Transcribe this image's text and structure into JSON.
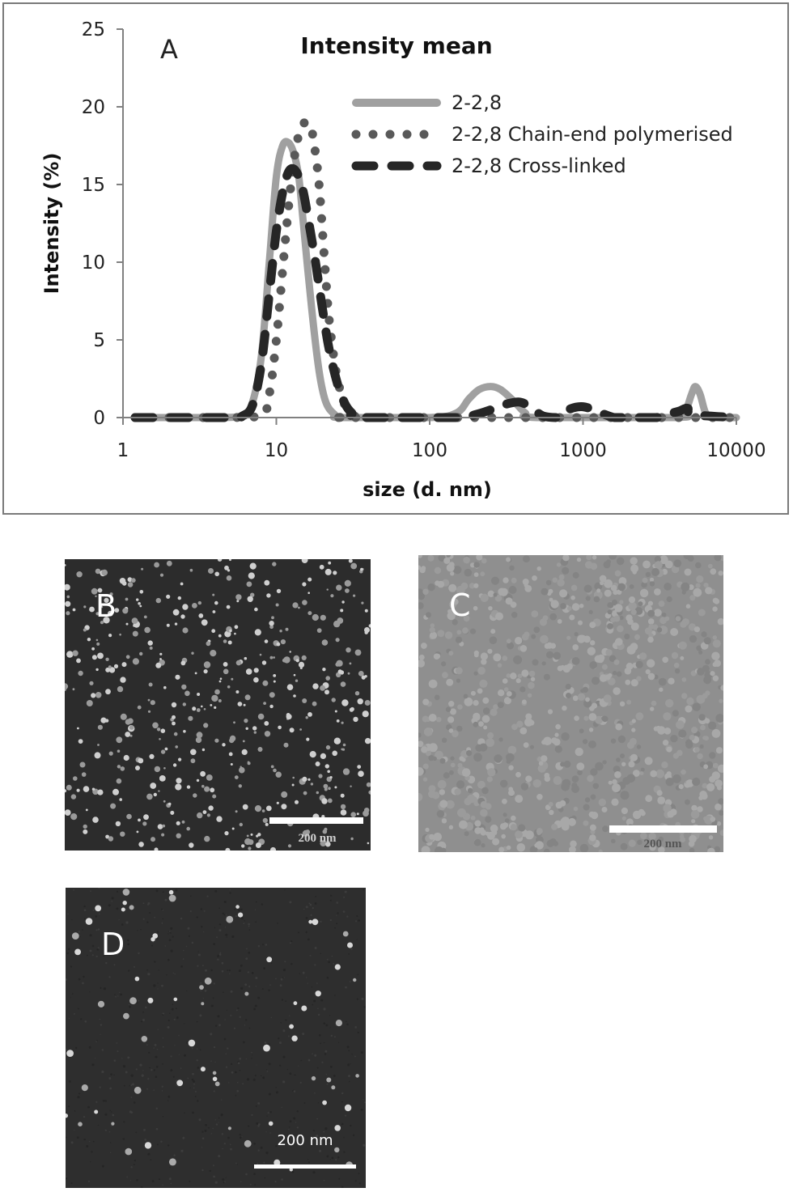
{
  "chart_data": {
    "type": "line",
    "panel_label": "A",
    "title": "Intensity mean",
    "xlabel": "size (d. nm)",
    "ylabel": "Intensity (%)",
    "x_scale": "log",
    "xlim": [
      1,
      10000
    ],
    "ylim": [
      0,
      25
    ],
    "x_ticks": [
      1,
      10,
      100,
      1000,
      10000
    ],
    "x_tick_labels": [
      "1",
      "10",
      "100",
      "1000",
      "10000"
    ],
    "y_ticks": [
      0,
      5,
      10,
      15,
      20,
      25
    ],
    "y_tick_labels": [
      "0",
      "5",
      "10",
      "15",
      "20",
      "25"
    ],
    "grid": false,
    "legend_position": "top-right",
    "series": [
      {
        "name": "2-2,8",
        "style": "solid",
        "color": "#a0a0a0",
        "x": [
          1.2,
          4.0,
          6.0,
          7.0,
          8.0,
          9.0,
          10.0,
          11.0,
          12.0,
          13.0,
          14.0,
          15.0,
          17.0,
          19.0,
          21.0,
          24.0,
          27.0,
          100.0,
          150.0,
          180.0,
          210.0,
          250.0,
          290.0,
          350.0,
          420.0,
          500.0,
          4000.0,
          4600.0,
          5100.0,
          5400.0,
          5800.0,
          6300.0,
          7000.0,
          10000.0
        ],
        "y": [
          0,
          0,
          0.1,
          1.0,
          4.0,
          10.0,
          15.5,
          17.5,
          17.7,
          17.0,
          15.5,
          12.5,
          7.0,
          3.0,
          1.0,
          0.2,
          0,
          0,
          0.3,
          1.2,
          1.8,
          2.0,
          1.8,
          1.1,
          0.3,
          0,
          0,
          0.3,
          1.5,
          2.0,
          1.5,
          0.3,
          0,
          0
        ]
      },
      {
        "name": "2-2,8 Chain-end polymerised",
        "style": "dotted",
        "color": "#595959",
        "x": [
          1.2,
          3.0,
          5.0,
          8.0,
          9.0,
          10.0,
          11.0,
          12.0,
          13.0,
          14.0,
          15.0,
          16.0,
          17.0,
          18.0,
          19.0,
          20.0,
          21.0,
          22.0,
          24.0,
          26.0,
          28.0,
          30.0,
          33.0,
          35.0,
          10000.0
        ],
        "y": [
          0,
          0,
          0,
          0.1,
          1.5,
          5.0,
          9.5,
          13.5,
          16.5,
          18.2,
          18.9,
          19.0,
          18.5,
          17.0,
          15.0,
          12.0,
          9.0,
          6.5,
          3.5,
          1.8,
          0.8,
          0.3,
          0.05,
          0,
          0
        ]
      },
      {
        "name": "2-2,8 Cross-linked",
        "style": "dashed",
        "color": "#262626",
        "x": [
          1.2,
          5.0,
          6.0,
          7.0,
          8.0,
          9.0,
          10.0,
          11.0,
          12.0,
          13.0,
          14.0,
          15.0,
          16.0,
          18.0,
          20.0,
          22.0,
          25.0,
          28.0,
          31.0,
          35.0,
          150.0,
          200.0,
          250.0,
          300.0,
          380.0,
          450.0,
          550.0,
          700.0,
          800.0,
          1000.0,
          1300.0,
          1600.0,
          2000.0,
          3000.0,
          3500.0,
          4200.0,
          4800.0,
          5200.0,
          10000.0
        ],
        "y": [
          0,
          0,
          0.1,
          0.8,
          3.5,
          8.0,
          12.0,
          14.5,
          15.8,
          16.0,
          15.5,
          14.5,
          13.0,
          10.0,
          7.0,
          4.5,
          2.2,
          0.9,
          0.3,
          0,
          0,
          0.2,
          0.5,
          0.8,
          1.0,
          0.7,
          0.1,
          0,
          0.5,
          0.7,
          0.3,
          0,
          0,
          0,
          0.2,
          0.4,
          0.6,
          0.2,
          0
        ]
      }
    ]
  },
  "micrographs": [
    {
      "label": "B",
      "scale_text": "200 nm"
    },
    {
      "label": "C",
      "scale_text": "200 nm"
    },
    {
      "label": "D",
      "scale_text": "200 nm"
    }
  ]
}
